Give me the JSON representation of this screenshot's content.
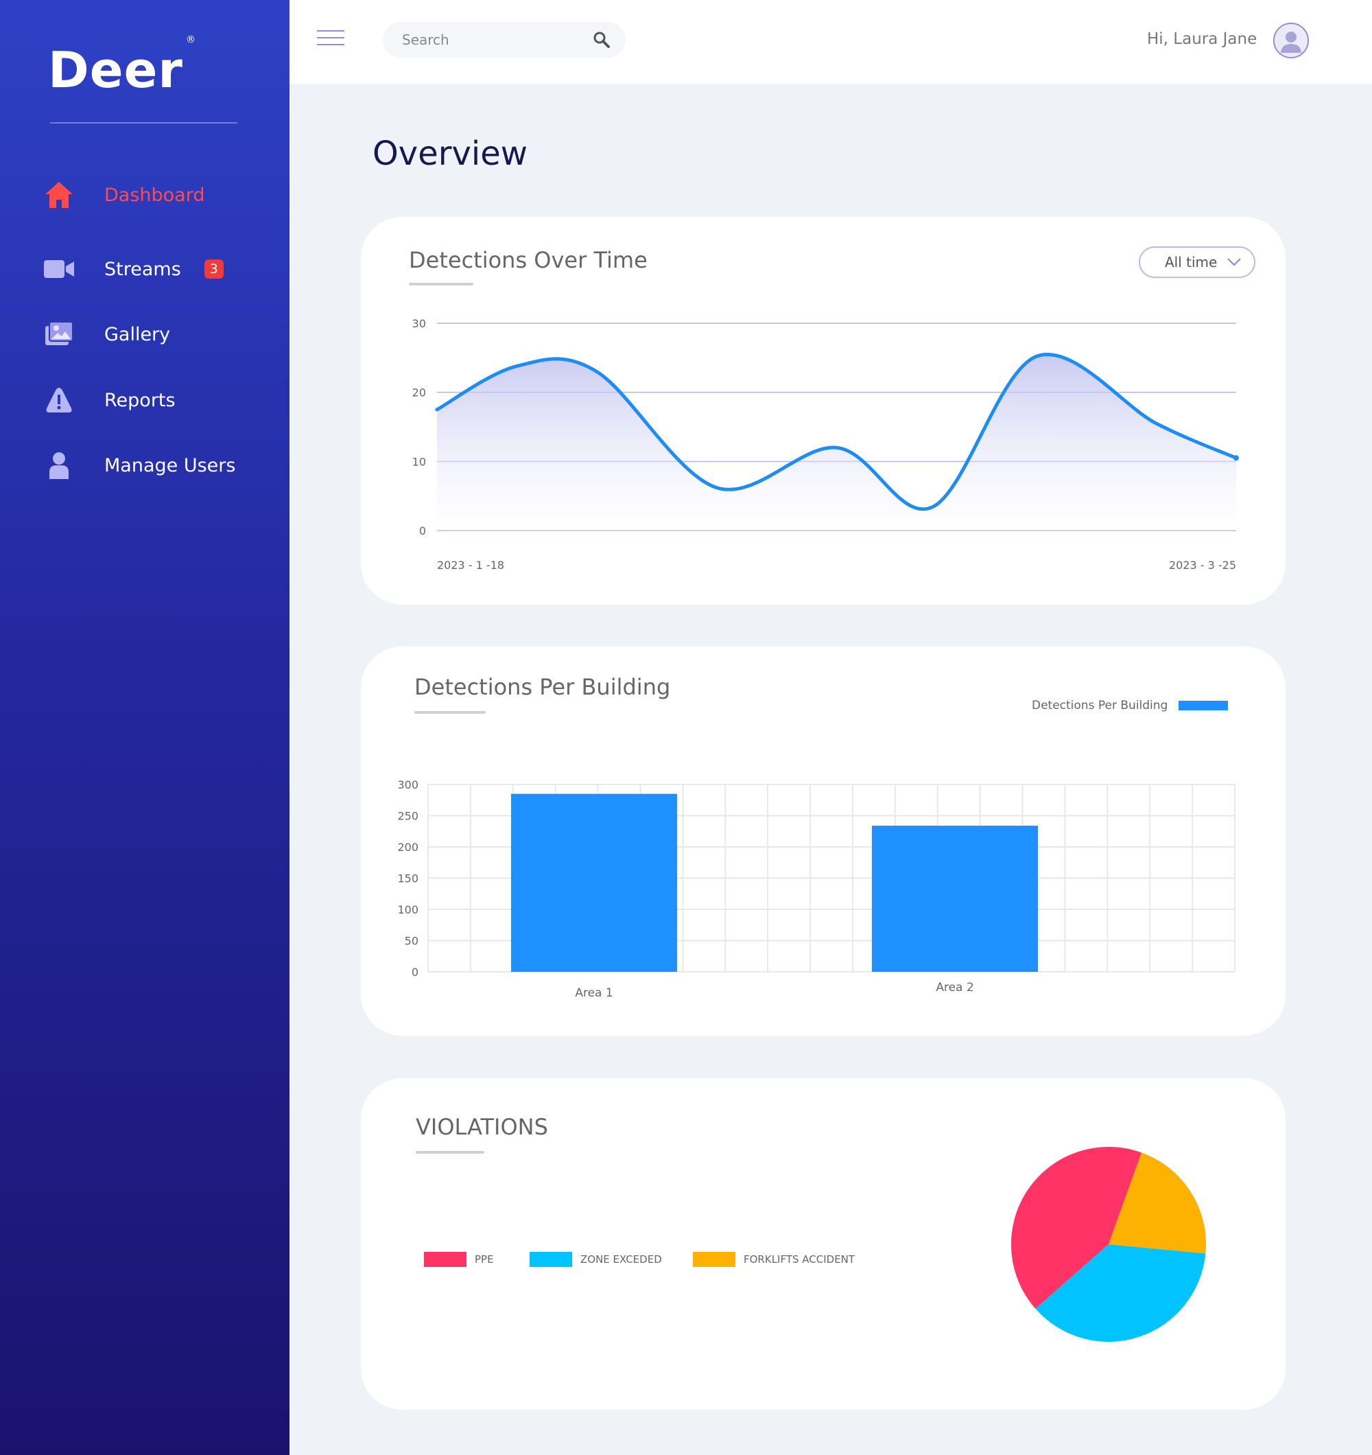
{
  "sidebar": {
    "logo": "Deer",
    "logo_mark": "®",
    "items": [
      {
        "label": "Dashboard",
        "icon": "home-icon",
        "active": true
      },
      {
        "label": "Streams",
        "icon": "video-camera-icon",
        "badge": "3"
      },
      {
        "label": "Gallery",
        "icon": "gallery-icon"
      },
      {
        "label": "Reports",
        "icon": "warning-icon"
      },
      {
        "label": "Manage Users",
        "icon": "user-icon"
      }
    ]
  },
  "header": {
    "search_placeholder": "Search",
    "greeting": "Hi, Laura Jane"
  },
  "main": {
    "title": "Overview"
  },
  "colors": {
    "accent_active": "#ff4b4b",
    "line": "#1e8cf5",
    "bar": "#1e90ff",
    "ppe": "#ff3366",
    "zone": "#00c3ff",
    "forklift": "#fdb100"
  },
  "charts": {
    "detections_over_time": {
      "title": "Detections Over Time",
      "filter": "All time"
    },
    "detections_per_building": {
      "title": "Detections Per Building"
    },
    "violations": {
      "title": "VIOLATIONS"
    }
  },
  "chart_data": [
    {
      "type": "area",
      "x_start": "2023 - 1 -18",
      "x_end": "2023 - 3 -25",
      "x": [
        0,
        0.1,
        0.2,
        0.35,
        0.5,
        0.62,
        0.75,
        0.9,
        1.0
      ],
      "values": [
        17.5,
        23.8,
        23,
        6.2,
        12,
        3.4,
        25.2,
        15.5,
        10.5
      ],
      "yticks": [
        0,
        10,
        20,
        30
      ],
      "ylim": [
        0,
        30
      ],
      "grid": true
    },
    {
      "type": "bar",
      "categories": [
        "Area 1",
        "Area 2"
      ],
      "series": [
        {
          "name": "Detections Per Building",
          "values": [
            285,
            234
          ]
        }
      ],
      "yticks": [
        0,
        50,
        100,
        150,
        200,
        250,
        300
      ],
      "ylim": [
        0,
        300
      ],
      "legend": "top-right",
      "grid": true
    },
    {
      "type": "pie",
      "labels": [
        "PPE",
        "ZONE EXCEDED",
        "FORKLIFTS ACCIDENT"
      ],
      "values": [
        42,
        37,
        21
      ],
      "legend": "left"
    }
  ]
}
